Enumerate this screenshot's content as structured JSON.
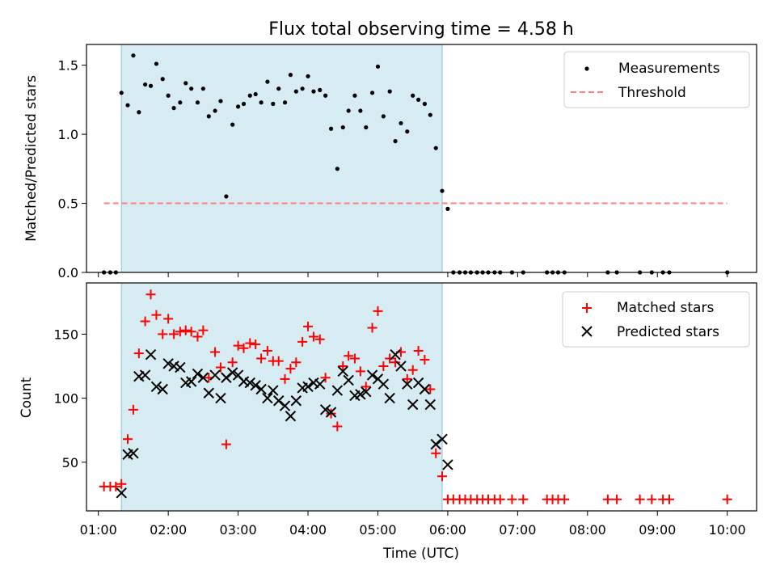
{
  "chart_data": [
    {
      "type": "scatter",
      "title": "Flux total observing time = 4.58 h",
      "xlabel": "",
      "ylabel": "Matched/Predicted stars",
      "ylim": [
        0,
        1.65
      ],
      "xlim": [
        0.83,
        10.42
      ],
      "yticks": [
        0,
        0.5,
        1.0,
        1.5
      ],
      "ytick_labels": [
        "0.0",
        "0.5",
        "1.0",
        "1.5"
      ],
      "observing_window": [
        1.33,
        5.92
      ],
      "legend_position": "upper right",
      "threshold": {
        "name": "Threshold",
        "y": 0.5,
        "x": [
          1.08,
          10.0
        ],
        "color": "#ff7f7f"
      },
      "series": [
        {
          "name": "Measurements",
          "color": "#000000",
          "points": [
            [
              1.08,
              0
            ],
            [
              1.17,
              0
            ],
            [
              1.25,
              0
            ],
            [
              1.33,
              1.3
            ],
            [
              1.42,
              1.21
            ],
            [
              1.5,
              1.57
            ],
            [
              1.58,
              1.16
            ],
            [
              1.67,
              1.36
            ],
            [
              1.75,
              1.35
            ],
            [
              1.83,
              1.51
            ],
            [
              1.92,
              1.4
            ],
            [
              2.0,
              1.28
            ],
            [
              2.08,
              1.19
            ],
            [
              2.17,
              1.23
            ],
            [
              2.25,
              1.37
            ],
            [
              2.33,
              1.33
            ],
            [
              2.42,
              1.23
            ],
            [
              2.5,
              1.33
            ],
            [
              2.58,
              1.13
            ],
            [
              2.67,
              1.17
            ],
            [
              2.75,
              1.24
            ],
            [
              2.83,
              0.55
            ],
            [
              2.92,
              1.07
            ],
            [
              3.0,
              1.2
            ],
            [
              3.08,
              1.22
            ],
            [
              3.17,
              1.28
            ],
            [
              3.25,
              1.29
            ],
            [
              3.33,
              1.23
            ],
            [
              3.42,
              1.38
            ],
            [
              3.5,
              1.22
            ],
            [
              3.58,
              1.33
            ],
            [
              3.67,
              1.23
            ],
            [
              3.75,
              1.43
            ],
            [
              3.83,
              1.31
            ],
            [
              3.92,
              1.33
            ],
            [
              4.0,
              1.42
            ],
            [
              4.08,
              1.31
            ],
            [
              4.17,
              1.32
            ],
            [
              4.25,
              1.28
            ],
            [
              4.33,
              1.04
            ],
            [
              4.42,
              0.75
            ],
            [
              4.5,
              1.05
            ],
            [
              4.58,
              1.17
            ],
            [
              4.67,
              1.28
            ],
            [
              4.75,
              1.17
            ],
            [
              4.83,
              1.05
            ],
            [
              4.92,
              1.3
            ],
            [
              5.0,
              1.49
            ],
            [
              5.08,
              1.13
            ],
            [
              5.17,
              1.31
            ],
            [
              5.25,
              0.95
            ],
            [
              5.33,
              1.08
            ],
            [
              5.42,
              1.02
            ],
            [
              5.5,
              1.28
            ],
            [
              5.58,
              1.25
            ],
            [
              5.67,
              1.22
            ],
            [
              5.75,
              1.14
            ],
            [
              5.83,
              0.9
            ],
            [
              5.92,
              0.59
            ],
            [
              6.0,
              0.46
            ],
            [
              6.08,
              0
            ],
            [
              6.17,
              0
            ],
            [
              6.25,
              0
            ],
            [
              6.33,
              0
            ],
            [
              6.42,
              0
            ],
            [
              6.5,
              0
            ],
            [
              6.58,
              0
            ],
            [
              6.67,
              0
            ],
            [
              6.75,
              0
            ],
            [
              6.92,
              0
            ],
            [
              7.08,
              0
            ],
            [
              7.42,
              0
            ],
            [
              7.5,
              0
            ],
            [
              7.58,
              0
            ],
            [
              7.67,
              0
            ],
            [
              8.29,
              0
            ],
            [
              8.42,
              0
            ],
            [
              8.75,
              0
            ],
            [
              8.92,
              0
            ],
            [
              9.08,
              0
            ],
            [
              9.17,
              0
            ],
            [
              10.0,
              0
            ]
          ]
        }
      ]
    },
    {
      "type": "scatter",
      "title": "",
      "xlabel": "Time (UTC)",
      "ylabel": "Count",
      "ylim": [
        12,
        190
      ],
      "xlim": [
        0.83,
        10.42
      ],
      "yticks": [
        50,
        100,
        150
      ],
      "ytick_labels": [
        "50",
        "100",
        "150"
      ],
      "xticks": [
        1,
        2,
        3,
        4,
        5,
        6,
        7,
        8,
        9,
        10
      ],
      "xtick_labels": [
        "01:00",
        "02:00",
        "03:00",
        "04:00",
        "05:00",
        "06:00",
        "07:00",
        "08:00",
        "09:00",
        "10:00"
      ],
      "observing_window": [
        1.33,
        5.92
      ],
      "legend_position": "upper right",
      "series": [
        {
          "name": "Matched stars",
          "color": "#ff0000",
          "marker": "+",
          "points": [
            [
              1.08,
              31
            ],
            [
              1.17,
              31
            ],
            [
              1.25,
              31
            ],
            [
              1.33,
              33
            ],
            [
              1.42,
              68
            ],
            [
              1.5,
              91
            ],
            [
              1.58,
              135
            ],
            [
              1.67,
              160
            ],
            [
              1.75,
              181
            ],
            [
              1.83,
              165
            ],
            [
              1.92,
              150
            ],
            [
              2.0,
              162
            ],
            [
              2.08,
              150
            ],
            [
              2.17,
              152
            ],
            [
              2.25,
              153
            ],
            [
              2.33,
              152
            ],
            [
              2.42,
              148
            ],
            [
              2.5,
              153
            ],
            [
              2.58,
              116
            ],
            [
              2.67,
              136
            ],
            [
              2.75,
              124
            ],
            [
              2.83,
              64
            ],
            [
              2.92,
              128
            ],
            [
              3.0,
              141
            ],
            [
              3.08,
              139
            ],
            [
              3.17,
              143
            ],
            [
              3.25,
              142
            ],
            [
              3.33,
              131
            ],
            [
              3.42,
              137
            ],
            [
              3.5,
              129
            ],
            [
              3.58,
              129
            ],
            [
              3.67,
              115
            ],
            [
              3.75,
              123
            ],
            [
              3.83,
              128
            ],
            [
              3.92,
              144
            ],
            [
              4.0,
              156
            ],
            [
              4.08,
              148
            ],
            [
              4.17,
              146
            ],
            [
              4.25,
              116
            ],
            [
              4.33,
              88
            ],
            [
              4.42,
              78
            ],
            [
              4.5,
              125
            ],
            [
              4.58,
              133
            ],
            [
              4.67,
              131
            ],
            [
              4.75,
              121
            ],
            [
              4.83,
              109
            ],
            [
              4.92,
              155
            ],
            [
              5.0,
              168
            ],
            [
              5.08,
              125
            ],
            [
              5.17,
              131
            ],
            [
              5.25,
              128
            ],
            [
              5.33,
              136
            ],
            [
              5.42,
              115
            ],
            [
              5.5,
              122
            ],
            [
              5.58,
              137
            ],
            [
              5.67,
              130
            ],
            [
              5.75,
              107
            ],
            [
              5.83,
              57
            ],
            [
              5.92,
              39
            ],
            [
              6.0,
              21
            ],
            [
              6.08,
              21
            ],
            [
              6.17,
              21
            ],
            [
              6.25,
              21
            ],
            [
              6.33,
              21
            ],
            [
              6.42,
              21
            ],
            [
              6.5,
              21
            ],
            [
              6.58,
              21
            ],
            [
              6.67,
              21
            ],
            [
              6.75,
              21
            ],
            [
              6.92,
              21
            ],
            [
              7.08,
              21
            ],
            [
              7.42,
              21
            ],
            [
              7.5,
              21
            ],
            [
              7.58,
              21
            ],
            [
              7.67,
              21
            ],
            [
              8.29,
              21
            ],
            [
              8.42,
              21
            ],
            [
              8.75,
              21
            ],
            [
              8.92,
              21
            ],
            [
              9.08,
              21
            ],
            [
              9.17,
              21
            ],
            [
              10.0,
              21
            ]
          ]
        },
        {
          "name": "Predicted stars",
          "color": "#000000",
          "marker": "x",
          "points": [
            [
              1.33,
              26
            ],
            [
              1.42,
              56
            ],
            [
              1.5,
              57
            ],
            [
              1.58,
              117
            ],
            [
              1.67,
              118
            ],
            [
              1.75,
              134
            ],
            [
              1.83,
              109
            ],
            [
              1.92,
              107
            ],
            [
              2.0,
              127
            ],
            [
              2.08,
              125
            ],
            [
              2.17,
              124
            ],
            [
              2.25,
              112
            ],
            [
              2.33,
              113
            ],
            [
              2.42,
              119
            ],
            [
              2.5,
              116
            ],
            [
              2.58,
              104
            ],
            [
              2.67,
              118
            ],
            [
              2.75,
              100
            ],
            [
              2.83,
              116
            ],
            [
              2.92,
              120
            ],
            [
              3.0,
              118
            ],
            [
              3.08,
              113
            ],
            [
              3.17,
              112
            ],
            [
              3.25,
              110
            ],
            [
              3.33,
              107
            ],
            [
              3.42,
              100
            ],
            [
              3.5,
              106
            ],
            [
              3.58,
              98
            ],
            [
              3.67,
              94
            ],
            [
              3.75,
              86
            ],
            [
              3.83,
              98
            ],
            [
              3.92,
              108
            ],
            [
              4.0,
              109
            ],
            [
              4.08,
              112
            ],
            [
              4.17,
              111
            ],
            [
              4.25,
              91
            ],
            [
              4.33,
              89
            ],
            [
              4.42,
              106
            ],
            [
              4.5,
              121
            ],
            [
              4.58,
              114
            ],
            [
              4.67,
              102
            ],
            [
              4.75,
              103
            ],
            [
              4.83,
              105
            ],
            [
              4.92,
              118
            ],
            [
              5.0,
              115
            ],
            [
              5.08,
              111
            ],
            [
              5.17,
              100
            ],
            [
              5.25,
              134
            ],
            [
              5.33,
              125
            ],
            [
              5.42,
              111
            ],
            [
              5.5,
              95
            ],
            [
              5.58,
              112
            ],
            [
              5.67,
              107
            ],
            [
              5.75,
              95
            ],
            [
              5.83,
              64
            ],
            [
              5.92,
              68
            ],
            [
              6.0,
              48
            ]
          ]
        }
      ]
    }
  ]
}
